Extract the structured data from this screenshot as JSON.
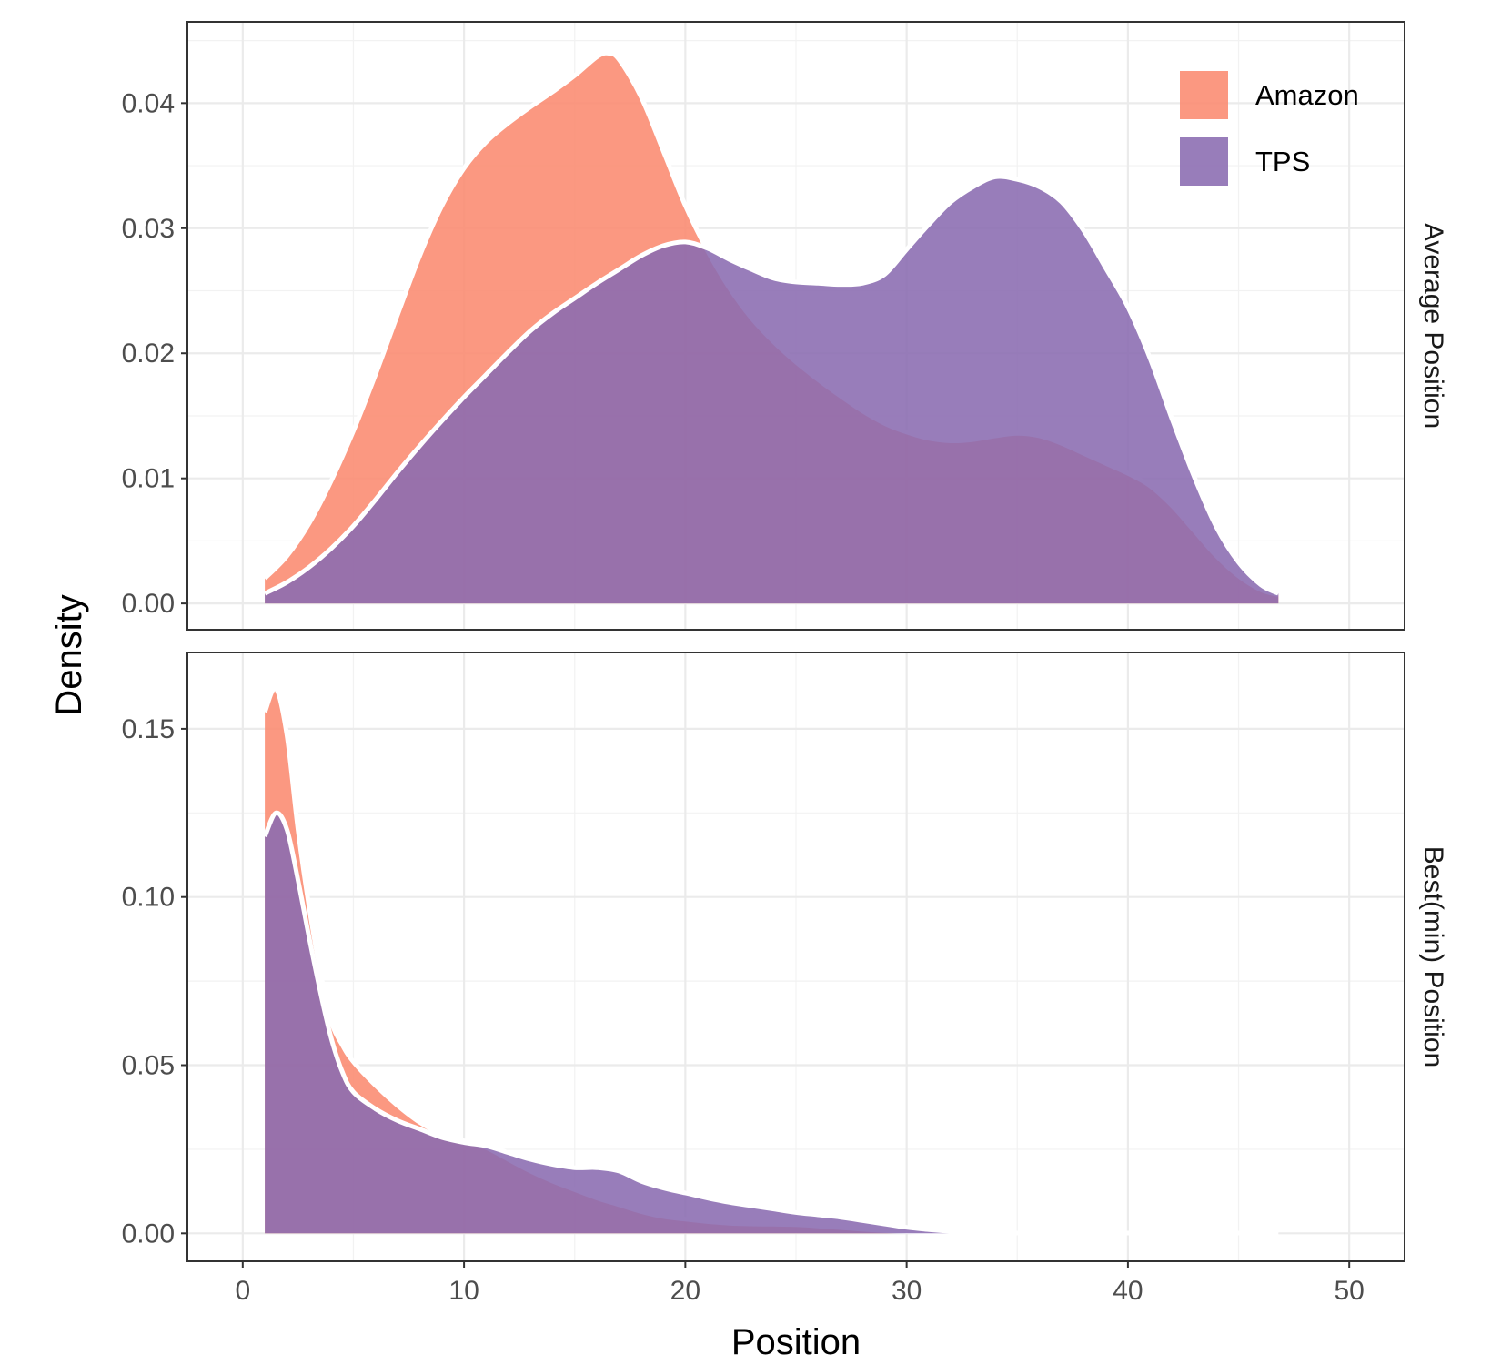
{
  "chart_data": {
    "type": "area",
    "xlabel": "Position",
    "ylabel": "Density",
    "xlim": [
      -2.5,
      52.5
    ],
    "x_ticks": [
      "0",
      "10",
      "20",
      "30",
      "40",
      "50"
    ],
    "grid": true,
    "legend_position": "top-right",
    "legend": [
      {
        "name": "Amazon",
        "color": "#fb8a6f"
      },
      {
        "name": "TPS",
        "color": "#8a6bb1"
      }
    ],
    "panels": [
      {
        "strip_label": "Average Position",
        "ylim": [
          -0.0021,
          0.0465
        ],
        "y_ticks": [
          "0.00",
          "0.01",
          "0.02",
          "0.03",
          "0.04"
        ],
        "series": [
          {
            "name": "Amazon",
            "x": [
              1,
              2,
              3,
              4,
              5,
              6,
              7,
              8,
              9,
              10,
              11,
              12,
              13,
              14,
              15,
              16,
              16.5,
              17,
              18,
              19,
              20,
              21,
              22,
              23,
              24,
              25,
              26,
              27,
              28,
              29,
              30,
              31,
              32,
              33,
              34,
              35,
              36,
              37,
              38,
              39,
              40,
              41,
              42,
              43,
              44,
              45,
              46,
              46.8
            ],
            "y": [
              0.002,
              0.0038,
              0.0064,
              0.0098,
              0.0138,
              0.0183,
              0.0231,
              0.0278,
              0.0318,
              0.0348,
              0.0369,
              0.0384,
              0.0397,
              0.0409,
              0.0422,
              0.0437,
              0.044,
              0.0435,
              0.0405,
              0.0362,
              0.0318,
              0.0282,
              0.0252,
              0.0228,
              0.0209,
              0.0193,
              0.0179,
              0.0166,
              0.0154,
              0.0144,
              0.0137,
              0.0132,
              0.013,
              0.0131,
              0.0134,
              0.0136,
              0.0134,
              0.0128,
              0.012,
              0.0112,
              0.0104,
              0.0094,
              0.0078,
              0.0058,
              0.0038,
              0.0022,
              0.0011,
              0.0007
            ]
          },
          {
            "name": "TPS",
            "x": [
              1,
              2,
              3,
              4,
              5,
              6,
              7,
              8,
              9,
              10,
              11,
              12,
              13,
              14,
              15,
              16,
              17,
              18,
              19,
              20,
              21,
              22,
              23,
              24,
              25,
              26,
              27,
              28,
              29,
              30,
              31,
              32,
              33,
              34,
              35,
              36,
              37,
              38,
              39,
              40,
              41,
              42,
              43,
              44,
              45,
              46,
              46.8
            ],
            "y": [
              0.0008,
              0.0017,
              0.0029,
              0.0044,
              0.0062,
              0.0083,
              0.0105,
              0.0126,
              0.0146,
              0.0165,
              0.0183,
              0.0201,
              0.0218,
              0.0232,
              0.0244,
              0.0256,
              0.0267,
              0.0278,
              0.0286,
              0.0289,
              0.0284,
              0.0275,
              0.0267,
              0.026,
              0.0257,
              0.0256,
              0.0255,
              0.0256,
              0.0263,
              0.0283,
              0.0303,
              0.0321,
              0.0333,
              0.0341,
              0.0339,
              0.0333,
              0.0321,
              0.0298,
              0.0268,
              0.0237,
              0.0196,
              0.0147,
              0.0101,
              0.0061,
              0.0033,
              0.0015,
              0.0008
            ]
          }
        ]
      },
      {
        "strip_label": "Best(min) Position",
        "ylim": [
          -0.0083,
          0.1727
        ],
        "y_ticks": [
          "0.00",
          "0.05",
          "0.10",
          "0.15"
        ],
        "series": [
          {
            "name": "Amazon",
            "x": [
              1,
              1.5,
              2,
              2.5,
              3,
              3.5,
              4,
              4.5,
              5,
              6,
              7,
              8,
              9,
              10,
              11,
              12,
              13,
              14,
              15,
              16,
              17,
              18,
              19,
              20,
              21,
              22,
              23,
              24,
              25,
              26,
              27,
              28,
              29,
              30,
              31,
              32,
              33,
              34,
              35,
              36,
              37,
              38,
              39,
              40,
              41,
              42,
              43,
              44,
              45,
              46,
              46.8
            ],
            "y": [
              0.155,
              0.162,
              0.148,
              0.12,
              0.097,
              0.078,
              0.063,
              0.056,
              0.051,
              0.044,
              0.038,
              0.033,
              0.0295,
              0.0275,
              0.0255,
              0.022,
              0.0185,
              0.0155,
              0.013,
              0.0105,
              0.0085,
              0.0065,
              0.005,
              0.0042,
              0.0035,
              0.003,
              0.0028,
              0.0027,
              0.0026,
              0.0022,
              0.0017,
              0.0012,
              0.0008,
              0.0005,
              0.0003,
              0.0002,
              0.0001,
              0.0001,
              0.0001,
              0.0001,
              0.0001,
              0.0001,
              0.0001,
              0.0001,
              0.0001,
              0.0001,
              0.0001,
              0.0001,
              0.0001,
              0.0001,
              0.0001
            ]
          },
          {
            "name": "TPS",
            "x": [
              1,
              1.5,
              2,
              2.5,
              3,
              3.5,
              4,
              4.5,
              5,
              6,
              7,
              8,
              9,
              10,
              11,
              12,
              13,
              14,
              15,
              16,
              17,
              18,
              19,
              20,
              21,
              22,
              23,
              24,
              25,
              26,
              27,
              28,
              29,
              30,
              31,
              32,
              33,
              34,
              35,
              36,
              37,
              38,
              39,
              40,
              41,
              42,
              43,
              44,
              45,
              46,
              46.8
            ],
            "y": [
              0.118,
              0.125,
              0.12,
              0.105,
              0.088,
              0.072,
              0.058,
              0.048,
              0.042,
              0.037,
              0.0335,
              0.031,
              0.0285,
              0.027,
              0.026,
              0.024,
              0.022,
              0.0205,
              0.0195,
              0.0195,
              0.0185,
              0.0155,
              0.0135,
              0.012,
              0.0105,
              0.0092,
              0.0082,
              0.0072,
              0.0062,
              0.0055,
              0.0048,
              0.0038,
              0.0028,
              0.0018,
              0.0011,
              0.0006,
              0.0003,
              0.0002,
              0.0001,
              0.0001,
              0.0001,
              0.0001,
              0.0001,
              0.0001,
              0.0001,
              0.0001,
              0.0001,
              0.0001,
              0.0001,
              0.0001,
              0.0001
            ]
          }
        ]
      }
    ]
  }
}
